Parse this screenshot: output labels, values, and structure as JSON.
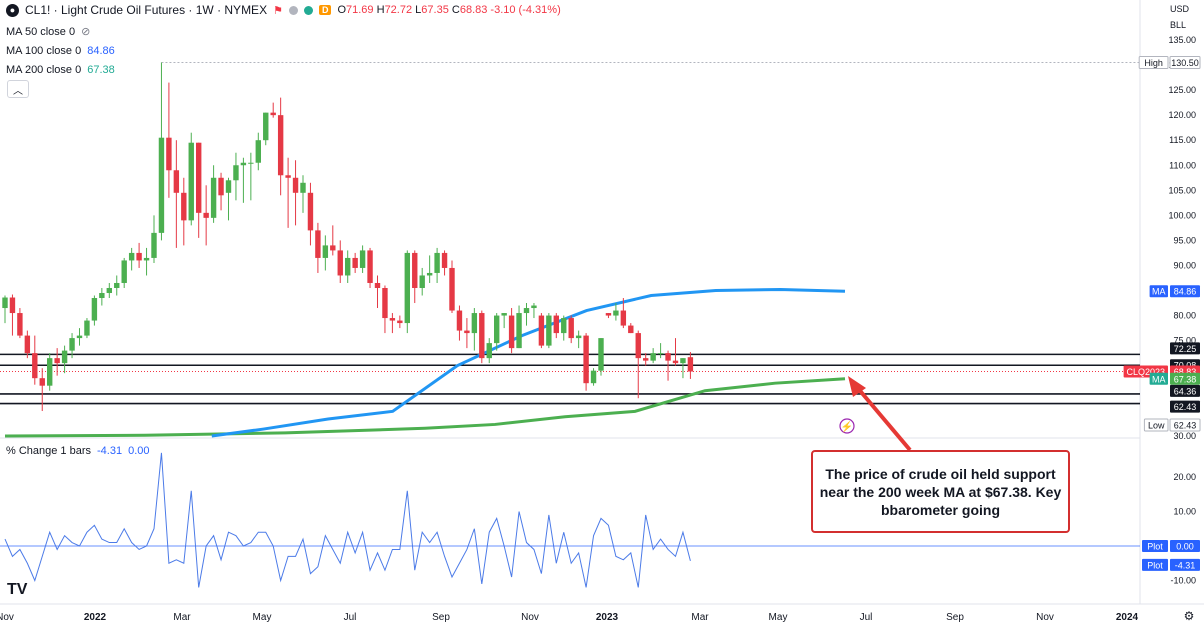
{
  "header": {
    "symbol_icon": "circle-logo-icon",
    "title": "CL1! · Light Crude Oil Futures · 1W · NYMEX",
    "d_badge": "D",
    "open_label": "O",
    "open": "71.69",
    "high_label": "H",
    "high": "72.72",
    "low_label": "L",
    "low": "67.35",
    "close_label": "C",
    "close": "68.83",
    "change": "-3.10 (-4.31%)"
  },
  "ma_legend": [
    {
      "label": "MA 50 close 0",
      "value": ""
    },
    {
      "label": "MA 100 close 0",
      "value": "84.86"
    },
    {
      "label": "MA 200 close 0",
      "value": "67.38"
    }
  ],
  "indicator_legend": {
    "label": "% Change 1 bars",
    "value1": "-4.31",
    "value2": "0.00"
  },
  "axis_corner": {
    "currency": "USD",
    "unit": "BLL"
  },
  "callout": {
    "text": "The price of crude oil held support near the 200 week MA at $67.38. Key bbarometer going"
  },
  "logo": "TV",
  "chart_data": [
    {
      "type": "candlestick",
      "ylim": [
        30,
        138
      ],
      "y_ticks": [
        "135.00",
        "130.00",
        "125.00",
        "120.00",
        "115.00",
        "110.00",
        "105.00",
        "100.00",
        "95.00",
        "90.00",
        "85.00",
        "80.00",
        "75.00",
        "70.00",
        "65.00",
        "30.00"
      ],
      "x_ticks": [
        "Nov",
        "2022",
        "Mar",
        "May",
        "Jul",
        "Sep",
        "Nov",
        "2023",
        "Mar",
        "May",
        "Jul",
        "Sep",
        "Nov",
        "2024"
      ],
      "candles": [
        {
          "o": 81.5,
          "h": 84.0,
          "l": 78.5,
          "c": 83.6
        },
        {
          "o": 83.6,
          "h": 84.2,
          "l": 76.0,
          "c": 80.5
        },
        {
          "o": 80.5,
          "h": 81.5,
          "l": 75.5,
          "c": 76.0
        },
        {
          "o": 76.0,
          "h": 77.0,
          "l": 71.5,
          "c": 72.5
        },
        {
          "o": 72.5,
          "h": 76.0,
          "l": 66.2,
          "c": 67.5
        },
        {
          "o": 67.5,
          "h": 69.5,
          "l": 62.4,
          "c": 66.0
        },
        {
          "o": 66.0,
          "h": 72.5,
          "l": 65.0,
          "c": 71.5
        },
        {
          "o": 71.5,
          "h": 73.5,
          "l": 68.0,
          "c": 70.5
        },
        {
          "o": 70.5,
          "h": 74.0,
          "l": 68.5,
          "c": 73.0
        },
        {
          "o": 73.0,
          "h": 76.5,
          "l": 71.5,
          "c": 75.5
        },
        {
          "o": 75.5,
          "h": 77.5,
          "l": 74.0,
          "c": 76.0
        },
        {
          "o": 76.0,
          "h": 79.5,
          "l": 75.5,
          "c": 79.0
        },
        {
          "o": 79.0,
          "h": 84.0,
          "l": 78.0,
          "c": 83.5
        },
        {
          "o": 83.5,
          "h": 85.5,
          "l": 82.0,
          "c": 84.5
        },
        {
          "o": 84.5,
          "h": 86.5,
          "l": 83.5,
          "c": 85.5
        },
        {
          "o": 85.5,
          "h": 88.0,
          "l": 84.0,
          "c": 86.5
        },
        {
          "o": 86.5,
          "h": 91.5,
          "l": 85.5,
          "c": 91.0
        },
        {
          "o": 91.0,
          "h": 93.5,
          "l": 89.0,
          "c": 92.5
        },
        {
          "o": 92.5,
          "h": 94.5,
          "l": 89.5,
          "c": 91.0
        },
        {
          "o": 91.0,
          "h": 93.5,
          "l": 88.0,
          "c": 91.5
        },
        {
          "o": 91.5,
          "h": 100.0,
          "l": 90.5,
          "c": 96.5
        },
        {
          "o": 96.5,
          "h": 130.5,
          "l": 95.0,
          "c": 115.5
        },
        {
          "o": 115.5,
          "h": 126.5,
          "l": 103.5,
          "c": 109.0
        },
        {
          "o": 109.0,
          "h": 115.0,
          "l": 93.5,
          "c": 104.5
        },
        {
          "o": 104.5,
          "h": 107.5,
          "l": 94.0,
          "c": 99.0
        },
        {
          "o": 99.0,
          "h": 116.5,
          "l": 98.0,
          "c": 114.5
        },
        {
          "o": 114.5,
          "h": 114.5,
          "l": 95.5,
          "c": 100.5
        },
        {
          "o": 100.5,
          "h": 106.0,
          "l": 94.0,
          "c": 99.5
        },
        {
          "o": 99.5,
          "h": 110.0,
          "l": 98.5,
          "c": 107.5
        },
        {
          "o": 107.5,
          "h": 108.5,
          "l": 101.0,
          "c": 104.0
        },
        {
          "o": 104.5,
          "h": 107.5,
          "l": 99.0,
          "c": 107.0
        },
        {
          "o": 107.0,
          "h": 112.5,
          "l": 103.0,
          "c": 110.0
        },
        {
          "o": 110.0,
          "h": 111.5,
          "l": 102.5,
          "c": 110.5
        },
        {
          "o": 110.5,
          "h": 112.5,
          "l": 103.0,
          "c": 110.5
        },
        {
          "o": 110.5,
          "h": 116.5,
          "l": 109.0,
          "c": 115.0
        },
        {
          "o": 115.0,
          "h": 120.5,
          "l": 114.0,
          "c": 120.5
        },
        {
          "o": 120.5,
          "h": 122.5,
          "l": 119.5,
          "c": 120.0
        },
        {
          "o": 120.0,
          "h": 123.5,
          "l": 104.0,
          "c": 108.0
        },
        {
          "o": 108.0,
          "h": 111.5,
          "l": 97.5,
          "c": 107.5
        },
        {
          "o": 107.5,
          "h": 111.0,
          "l": 98.0,
          "c": 104.5
        },
        {
          "o": 104.5,
          "h": 108.0,
          "l": 100.5,
          "c": 106.5
        },
        {
          "o": 104.5,
          "h": 106.5,
          "l": 94.0,
          "c": 97.0
        },
        {
          "o": 97.0,
          "h": 98.5,
          "l": 88.5,
          "c": 91.5
        },
        {
          "o": 91.5,
          "h": 96.0,
          "l": 89.0,
          "c": 94.0
        },
        {
          "o": 94.0,
          "h": 98.0,
          "l": 92.0,
          "c": 93.0
        },
        {
          "o": 93.0,
          "h": 95.0,
          "l": 86.5,
          "c": 88.0
        },
        {
          "o": 88.0,
          "h": 93.0,
          "l": 86.5,
          "c": 91.5
        },
        {
          "o": 91.5,
          "h": 92.5,
          "l": 88.5,
          "c": 89.5
        },
        {
          "o": 89.5,
          "h": 94.0,
          "l": 88.5,
          "c": 93.0
        },
        {
          "o": 93.0,
          "h": 93.5,
          "l": 85.5,
          "c": 86.5
        },
        {
          "o": 86.5,
          "h": 88.0,
          "l": 81.5,
          "c": 85.5
        },
        {
          "o": 85.5,
          "h": 86.0,
          "l": 76.5,
          "c": 79.5
        },
        {
          "o": 79.5,
          "h": 80.5,
          "l": 76.5,
          "c": 79.0
        },
        {
          "o": 79.0,
          "h": 80.0,
          "l": 77.5,
          "c": 78.5
        },
        {
          "o": 78.5,
          "h": 93.0,
          "l": 76.5,
          "c": 92.5
        },
        {
          "o": 92.5,
          "h": 93.0,
          "l": 82.5,
          "c": 85.5
        },
        {
          "o": 85.5,
          "h": 89.5,
          "l": 84.0,
          "c": 88.0
        },
        {
          "o": 88.0,
          "h": 92.0,
          "l": 86.5,
          "c": 88.5
        },
        {
          "o": 88.5,
          "h": 93.5,
          "l": 86.5,
          "c": 92.5
        },
        {
          "o": 92.5,
          "h": 93.0,
          "l": 88.0,
          "c": 89.5
        },
        {
          "o": 89.5,
          "h": 91.0,
          "l": 80.5,
          "c": 81.0
        },
        {
          "o": 81.0,
          "h": 82.0,
          "l": 75.0,
          "c": 77.0
        },
        {
          "o": 77.0,
          "h": 79.5,
          "l": 73.5,
          "c": 76.5
        },
        {
          "o": 76.5,
          "h": 81.5,
          "l": 73.0,
          "c": 80.5
        },
        {
          "o": 80.5,
          "h": 81.0,
          "l": 70.5,
          "c": 71.5
        },
        {
          "o": 71.5,
          "h": 75.5,
          "l": 70.5,
          "c": 74.5
        },
        {
          "o": 74.5,
          "h": 80.5,
          "l": 73.0,
          "c": 80.0
        },
        {
          "o": 80.0,
          "h": 80.5,
          "l": 77.5,
          "c": 80.5
        },
        {
          "o": 80.0,
          "h": 81.5,
          "l": 72.5,
          "c": 73.5
        },
        {
          "o": 73.5,
          "h": 82.0,
          "l": 73.5,
          "c": 80.5
        },
        {
          "o": 80.5,
          "h": 82.5,
          "l": 78.0,
          "c": 81.5
        },
        {
          "o": 81.5,
          "h": 82.5,
          "l": 79.5,
          "c": 82.0
        },
        {
          "o": 80.0,
          "h": 80.5,
          "l": 73.5,
          "c": 74.0
        },
        {
          "o": 74.0,
          "h": 80.5,
          "l": 73.5,
          "c": 80.0
        },
        {
          "o": 80.0,
          "h": 80.5,
          "l": 75.5,
          "c": 76.5
        },
        {
          "o": 76.5,
          "h": 80.0,
          "l": 75.0,
          "c": 79.5
        },
        {
          "o": 79.5,
          "h": 80.0,
          "l": 74.5,
          "c": 75.5
        },
        {
          "o": 75.5,
          "h": 77.0,
          "l": 73.5,
          "c": 76.0
        },
        {
          "o": 76.0,
          "h": 76.5,
          "l": 65.0,
          "c": 66.5
        },
        {
          "o": 66.5,
          "h": 69.5,
          "l": 66.0,
          "c": 69.0
        },
        {
          "o": 69.0,
          "h": 75.5,
          "l": 68.0,
          "c": 75.5
        },
        {
          "o": 80.5,
          "h": 80.5,
          "l": 79.5,
          "c": 80.0
        },
        {
          "o": 80.0,
          "h": 82.5,
          "l": 79.0,
          "c": 81.0
        },
        {
          "o": 81.0,
          "h": 83.5,
          "l": 77.5,
          "c": 78.0
        },
        {
          "o": 78.0,
          "h": 78.5,
          "l": 76.5,
          "c": 76.5
        },
        {
          "o": 76.5,
          "h": 77.0,
          "l": 63.5,
          "c": 71.5
        },
        {
          "o": 71.5,
          "h": 72.5,
          "l": 70.0,
          "c": 71.0
        },
        {
          "o": 71.0,
          "h": 73.5,
          "l": 70.5,
          "c": 72.5
        },
        {
          "o": 72.5,
          "h": 74.5,
          "l": 71.5,
          "c": 72.5
        },
        {
          "o": 72.5,
          "h": 73.0,
          "l": 67.0,
          "c": 71.0
        },
        {
          "o": 71.0,
          "h": 75.5,
          "l": 70.0,
          "c": 70.5
        },
        {
          "o": 70.5,
          "h": 71.5,
          "l": 67.5,
          "c": 71.5
        },
        {
          "o": 71.69,
          "h": 72.72,
          "l": 67.35,
          "c": 68.83
        }
      ],
      "ma100": [
        {
          "i": 32,
          "v": 30.0
        },
        {
          "i": 40,
          "v": 39.0
        },
        {
          "i": 50,
          "v": 52.0
        },
        {
          "i": 60,
          "v": 62.0
        },
        {
          "i": 70,
          "v": 70.0
        },
        {
          "i": 80,
          "v": 76.0
        },
        {
          "i": 90,
          "v": 81.0
        },
        {
          "i": 100,
          "v": 84.0
        },
        {
          "i": 110,
          "v": 85.0
        },
        {
          "i": 120,
          "v": 85.2
        },
        {
          "i": 130,
          "v": 84.86
        }
      ],
      "ma200": [
        {
          "i": 0,
          "v": 30.0
        },
        {
          "i": 20,
          "v": 31.0
        },
        {
          "i": 40,
          "v": 34.0
        },
        {
          "i": 60,
          "v": 40.0
        },
        {
          "i": 70,
          "v": 45.0
        },
        {
          "i": 80,
          "v": 55.0
        },
        {
          "i": 90,
          "v": 62.0
        },
        {
          "i": 100,
          "v": 65.0
        },
        {
          "i": 110,
          "v": 66.5
        },
        {
          "i": 120,
          "v": 67.38
        }
      ],
      "horizontal_lines": [
        72.25,
        70.08,
        64.36,
        62.43
      ],
      "current_price_line": 68.83,
      "high_marker": 130.5,
      "price_tags": [
        {
          "value": "130.50",
          "label": "High"
        },
        {
          "value": "84.86",
          "label": "MA",
          "color": "#2962ff"
        },
        {
          "value": "72.25",
          "label": ""
        },
        {
          "value": "70.08",
          "label": ""
        },
        {
          "value": "68.83",
          "label": "CLQ2023",
          "color": "#f23645"
        },
        {
          "value": "67.38",
          "label": "MA",
          "color": "#22ab94"
        },
        {
          "value": "64.36",
          "label": ""
        },
        {
          "value": "62.43",
          "label": ""
        },
        {
          "value": "62.43",
          "label": "Low"
        }
      ]
    },
    {
      "type": "line",
      "name": "% Change 1 bars",
      "ylim": [
        -12,
        27
      ],
      "y_ticks": [
        "20.00",
        "10.00",
        "-10.00"
      ],
      "zero_tag": {
        "label": "Plot",
        "value": "0.00"
      },
      "last_tag": {
        "label": "Plot",
        "value": "-4.31"
      },
      "values": [
        2,
        -3,
        -1,
        -5,
        -10,
        -3,
        4,
        -1,
        3,
        1,
        0,
        4,
        6,
        2,
        1,
        1,
        5,
        1,
        -1,
        0,
        5,
        27,
        -5,
        -4,
        -5,
        16,
        -13,
        0,
        3,
        -4,
        4,
        3,
        0,
        1,
        4,
        4,
        0,
        -10,
        -3,
        -3,
        2,
        -8,
        -6,
        3,
        -1,
        -5,
        4,
        -2,
        4,
        -7,
        -2,
        -7,
        -1,
        -1,
        16,
        -7,
        4,
        1,
        4,
        -3,
        -9,
        -5,
        -1,
        5,
        -11,
        4,
        8,
        0,
        -9,
        10,
        1,
        -1,
        -8,
        9,
        -5,
        4,
        -5,
        -2,
        -13,
        3,
        8,
        6,
        -3,
        -4,
        -2,
        -13,
        9,
        -1,
        2,
        -1,
        -3,
        4,
        -4.31
      ]
    }
  ]
}
